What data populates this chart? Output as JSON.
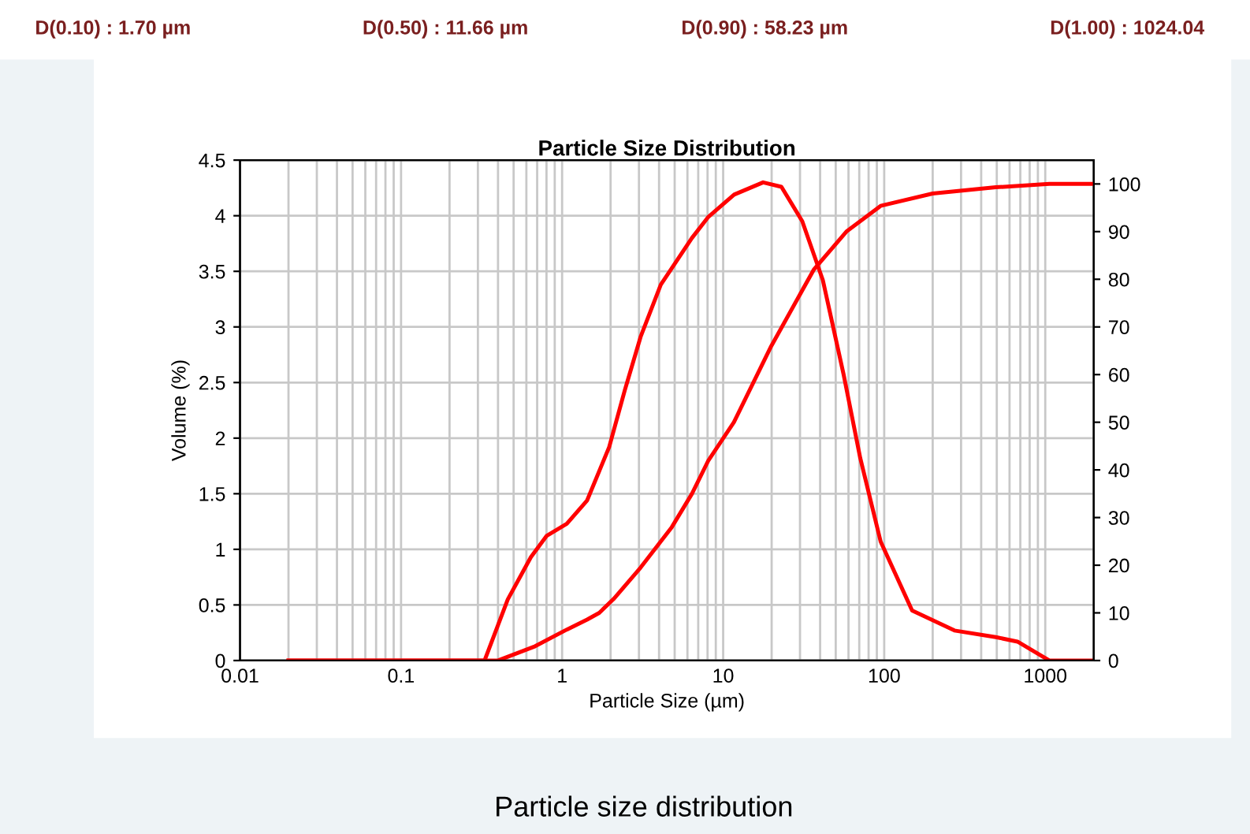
{
  "chart_data": {
    "type": "line",
    "title": "Particle Size Distribution",
    "xlabel": "Particle Size (µm)",
    "ylabel": "Volume (%)",
    "annotations": [
      "D(0.10) : 1.70 µm",
      "D(0.50) : 11.66 µm",
      "D(0.90) : 58.23 µm",
      "D(1.00) : 1024.04",
      "Particle size distribution"
    ],
    "log": "x",
    "grid": true,
    "marker": "none",
    "line_style": "solid",
    "xlim": [
      0.01,
      2000
    ],
    "xticks": [
      0.01,
      0.1,
      1,
      10,
      100,
      1000
    ],
    "ylim": [
      0,
      4.5
    ],
    "yticks": [
      0,
      0.5,
      1,
      1.5,
      2,
      2.5,
      3,
      3.5,
      4,
      4.5
    ],
    "y2lim": [
      0,
      105
    ],
    "y2ticks": [
      0,
      10,
      20,
      30,
      40,
      50,
      60,
      70,
      80,
      90,
      100
    ],
    "series": [
      {
        "color": "#ff0000",
        "x": [
          0.02,
          0.1,
          0.33,
          0.46,
          0.64,
          0.8,
          1.07,
          1.43,
          1.96,
          2.45,
          3.07,
          4.1,
          6.4,
          8.1,
          11.7,
          17.7,
          23,
          31,
          41.6,
          56,
          71,
          95,
          149,
          273,
          493,
          672,
          1060,
          1950
        ],
        "values": [
          0,
          0,
          0,
          0.55,
          0.93,
          1.12,
          1.23,
          1.44,
          1.92,
          2.43,
          2.91,
          3.38,
          3.8,
          3.99,
          4.19,
          4.3,
          4.26,
          3.95,
          3.42,
          2.57,
          1.82,
          1.07,
          0.45,
          0.27,
          0.21,
          0.17,
          0,
          0
        ]
      },
      {
        "color": "#ff0000",
        "axis": "y2",
        "x": [
          0.02,
          0.1,
          0.4,
          0.68,
          1.07,
          1.43,
          1.7,
          2.1,
          3.07,
          4.8,
          6.4,
          8.1,
          11.66,
          19.9,
          36.5,
          58.23,
          95,
          200,
          493,
          1060,
          1950
        ],
        "values": [
          0,
          0,
          0,
          3,
          6.5,
          8.6,
          10,
          13,
          19.5,
          28,
          35,
          42,
          50,
          66,
          82,
          90,
          95.4,
          98,
          99.3,
          100,
          100
        ]
      }
    ]
  }
}
